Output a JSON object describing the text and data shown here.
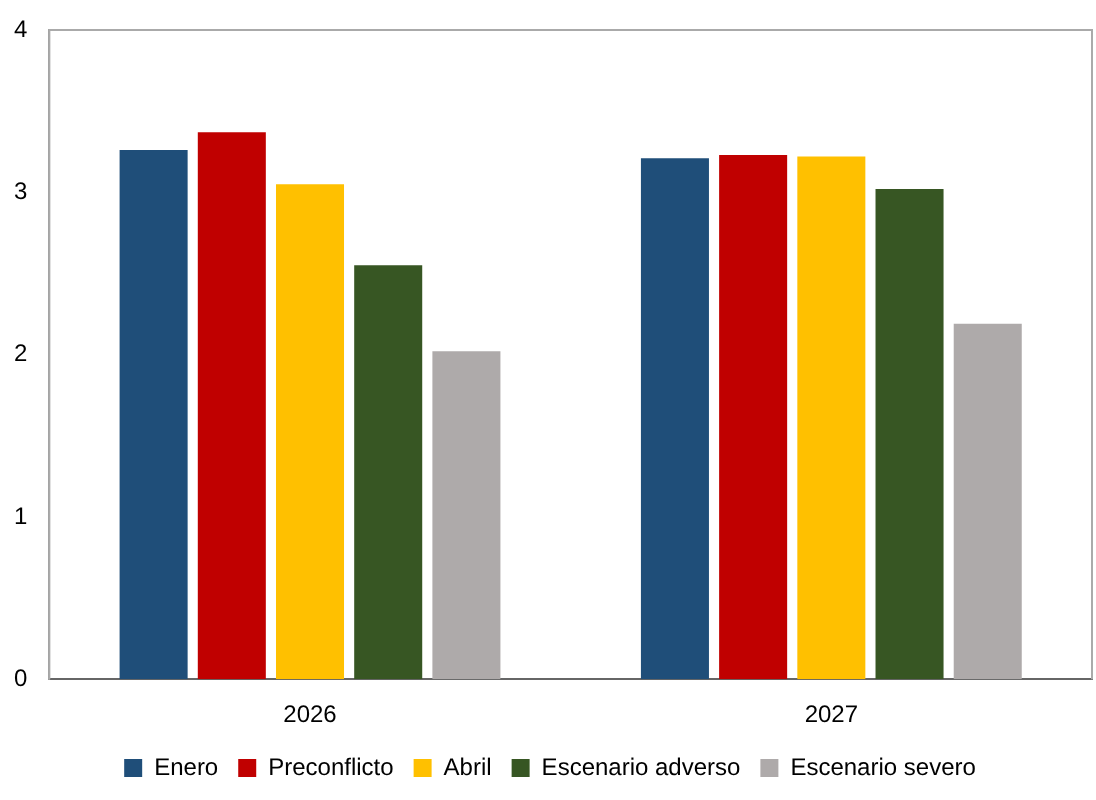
{
  "chart_data": {
    "type": "bar",
    "categories": [
      "2026",
      "2027"
    ],
    "series": [
      {
        "name": "Enero",
        "color": "#1f4e79",
        "values": [
          3.26,
          3.21
        ]
      },
      {
        "name": "Preconflicto",
        "color": "#c00000",
        "values": [
          3.37,
          3.23
        ]
      },
      {
        "name": "Abril",
        "color": "#ffc000",
        "values": [
          3.05,
          3.22
        ]
      },
      {
        "name": "Escenario adverso",
        "color": "#375623",
        "values": [
          2.55,
          3.02
        ]
      },
      {
        "name": "Escenario severo",
        "color": "#aeaaaa",
        "values": [
          2.02,
          2.19
        ]
      }
    ],
    "ylim": [
      0,
      4
    ],
    "yticks": [
      0,
      1,
      2,
      3,
      4
    ],
    "grid": false,
    "legend": "bottom"
  }
}
